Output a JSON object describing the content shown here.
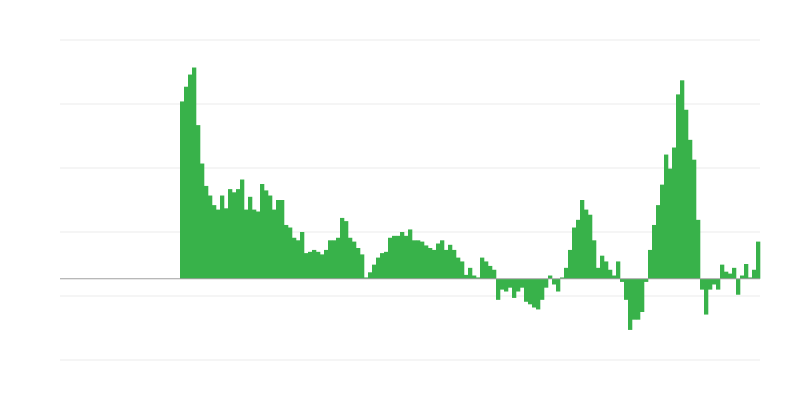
{
  "chart_data": {
    "type": "bar",
    "title": "",
    "xlabel": "",
    "ylabel": "",
    "ylim": [
      -1.27,
      3.73
    ],
    "gridlines": [
      3.73,
      2.73,
      1.73,
      0.73,
      -0.27,
      -1.27
    ],
    "grid": true,
    "leading_empty_bars": 30,
    "bar_color": "#38b24a",
    "grid_color": "#ebebeb",
    "baseline_color": "#a0a0a0",
    "values": [
      2.77,
      3.0,
      3.19,
      3.3,
      2.4,
      1.8,
      1.45,
      1.3,
      1.15,
      1.08,
      1.3,
      1.1,
      1.4,
      1.35,
      1.4,
      1.55,
      1.08,
      1.28,
      1.08,
      1.05,
      1.48,
      1.38,
      1.3,
      1.08,
      1.23,
      1.23,
      0.84,
      0.8,
      0.64,
      0.6,
      0.73,
      0.4,
      0.42,
      0.45,
      0.42,
      0.38,
      0.45,
      0.6,
      0.6,
      0.64,
      0.95,
      0.9,
      0.64,
      0.58,
      0.48,
      0.38,
      0.02,
      0.1,
      0.22,
      0.33,
      0.4,
      0.42,
      0.64,
      0.67,
      0.67,
      0.73,
      0.67,
      0.77,
      0.6,
      0.6,
      0.58,
      0.52,
      0.48,
      0.45,
      0.55,
      0.6,
      0.45,
      0.53,
      0.45,
      0.33,
      0.27,
      0.06,
      0.17,
      0.05,
      0.02,
      0.33,
      0.27,
      0.2,
      0.14,
      -0.33,
      -0.17,
      -0.2,
      -0.14,
      -0.3,
      -0.2,
      -0.14,
      -0.36,
      -0.4,
      -0.45,
      -0.48,
      -0.33,
      -0.14,
      0.05,
      -0.09,
      -0.2,
      0.02,
      0.17,
      0.45,
      0.8,
      0.92,
      1.23,
      1.08,
      1.0,
      0.6,
      0.17,
      0.36,
      0.27,
      0.14,
      0.05,
      0.27,
      -0.05,
      -0.33,
      -0.8,
      -0.64,
      -0.64,
      -0.52,
      -0.05,
      0.45,
      0.84,
      1.15,
      1.47,
      1.94,
      1.72,
      2.05,
      2.88,
      3.1,
      2.64,
      2.17,
      1.86,
      0.92,
      -0.17,
      -0.56,
      -0.17,
      -0.09,
      -0.17,
      0.22,
      0.11,
      0.08,
      0.17,
      -0.25,
      0.05,
      0.23,
      0.02,
      0.14,
      0.58
    ]
  }
}
